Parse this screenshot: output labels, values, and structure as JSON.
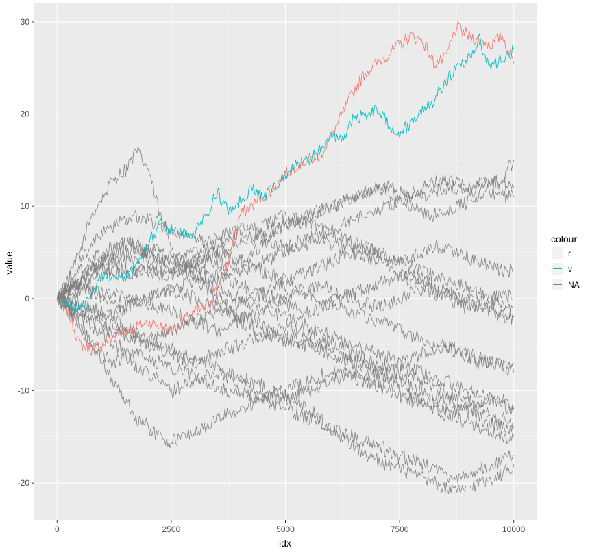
{
  "chart_data": {
    "type": "line",
    "title": "",
    "xlabel": "idx",
    "ylabel": "value",
    "xlim": [
      -500,
      10500
    ],
    "ylim": [
      -24,
      32
    ],
    "x_ticks": [
      0,
      2500,
      5000,
      7500,
      10000
    ],
    "x_tick_labels": [
      "0",
      "2500",
      "5000",
      "7500",
      "10000"
    ],
    "y_ticks": [
      -20,
      -10,
      0,
      10,
      20,
      30
    ],
    "y_tick_labels": [
      "-20",
      "-10",
      "0",
      "10",
      "20",
      "30"
    ],
    "grid": true,
    "legend": {
      "title": "colour",
      "placement": "right",
      "entries": [
        {
          "label": "r",
          "color": "#F8766D"
        },
        {
          "label": "v",
          "color": "#00BFC4"
        },
        {
          "label": "NA",
          "color": "#7F7F7F"
        }
      ]
    },
    "colors": {
      "panel_background": "#EBEBEB",
      "grid_major": "#FFFFFF",
      "grid_minor": "#F5F5F5",
      "other_series": "#7F7F7F"
    },
    "series": [
      {
        "name": "r",
        "color": "#F8766D",
        "x": [
          0,
          250,
          500,
          750,
          1000,
          1250,
          1500,
          1750,
          2000,
          2250,
          2500,
          2750,
          3000,
          3250,
          3500,
          3750,
          4000,
          4250,
          4500,
          4750,
          5000,
          5250,
          5500,
          5750,
          6000,
          6250,
          6500,
          6750,
          7000,
          7250,
          7500,
          7750,
          8000,
          8250,
          8500,
          8750,
          9000,
          9250,
          9500,
          9750,
          10000
        ],
        "values": [
          0,
          -1.5,
          -5,
          -5.5,
          -5,
          -4,
          -3.5,
          -3,
          -2.5,
          -3,
          -3.5,
          -2.5,
          -1.5,
          -1,
          1,
          4,
          9,
          10,
          11,
          12,
          13.5,
          14.5,
          15,
          15.5,
          17.5,
          20,
          22.5,
          24.5,
          25.5,
          26.5,
          27.5,
          28.5,
          28,
          25.5,
          26,
          29.5,
          28.5,
          28,
          27.5,
          28.5,
          25.5
        ]
      },
      {
        "name": "v",
        "color": "#00BFC4",
        "x": [
          0,
          250,
          500,
          750,
          1000,
          1250,
          1500,
          1750,
          2000,
          2250,
          2500,
          2750,
          3000,
          3250,
          3500,
          3750,
          4000,
          4250,
          4500,
          4750,
          5000,
          5250,
          5500,
          5750,
          6000,
          6250,
          6500,
          6750,
          7000,
          7250,
          7500,
          7750,
          8000,
          8250,
          8500,
          8750,
          9000,
          9250,
          9500,
          9750,
          10000
        ],
        "values": [
          0,
          -0.5,
          -1,
          0.5,
          2.5,
          2,
          2.5,
          3.5,
          6,
          8,
          7.5,
          7,
          7,
          9,
          11.5,
          9.5,
          10.5,
          12,
          11,
          12,
          13.5,
          14.5,
          15,
          16,
          17.5,
          17.5,
          19.5,
          20,
          20.5,
          19,
          18,
          19,
          20.5,
          21.5,
          23.5,
          25,
          26,
          28,
          25,
          26,
          27
        ]
      }
    ],
    "other_series_name": "NA",
    "other_series": [
      [
        0,
        2,
        5,
        9,
        11,
        13,
        14,
        16,
        14,
        9,
        6,
        3,
        2,
        1,
        0,
        -1,
        -2,
        -2,
        -3,
        -4,
        -4.5,
        -5,
        -5,
        -5.5,
        -6,
        -6.5,
        -7,
        -7,
        -8,
        -8,
        -8,
        -8.5,
        -9,
        -9.5,
        -10,
        -10.5,
        -11,
        -12,
        -12.5,
        -13,
        -14
      ],
      [
        0,
        1,
        2,
        3,
        4,
        4,
        3,
        3,
        3,
        2.5,
        2.5,
        3,
        3.5,
        4,
        4,
        3.5,
        4,
        5,
        6,
        7,
        8,
        8.5,
        9,
        9.5,
        10,
        10.5,
        11,
        11.5,
        12,
        12,
        11.5,
        11,
        11,
        11.5,
        12,
        12,
        11.5,
        12,
        12.5,
        13,
        15
      ],
      [
        0,
        -1,
        -3,
        -5,
        -6,
        -7,
        -6,
        -7.5,
        -8,
        -9,
        -10,
        -9.5,
        -9,
        -8.5,
        -8,
        -8.5,
        -9,
        -10,
        -10.5,
        -11,
        -11,
        -10.5,
        -10,
        -9.5,
        -9,
        -8.5,
        -8,
        -8.5,
        -9,
        -9,
        -10,
        -10.5,
        -11,
        -11.5,
        -12,
        -12,
        -12,
        -11.5,
        -11,
        -11,
        -12
      ],
      [
        0,
        -1.5,
        -3,
        -5,
        -7,
        -9,
        -11,
        -13,
        -14,
        -15,
        -15.5,
        -15,
        -14.5,
        -14,
        -13,
        -12.5,
        -12,
        -11.5,
        -11,
        -10.5,
        -10,
        -9.5,
        -9,
        -8.5,
        -8,
        -8,
        -8.5,
        -9,
        -9.5,
        -10,
        -10.5,
        -11,
        -11.5,
        -12,
        -12.5,
        -13,
        -13.5,
        -14,
        -14.5,
        -15,
        -15
      ],
      [
        0,
        0.5,
        1,
        1,
        0.5,
        0.5,
        0,
        0,
        -0.5,
        -1,
        -1.5,
        -2,
        -2.5,
        -3,
        -3.5,
        -3,
        -2.5,
        -3,
        -3.5,
        -4,
        -4,
        -4.5,
        -5,
        -5.5,
        -6,
        -6.5,
        -7,
        -7.5,
        -8,
        -8.5,
        -9,
        -9.5,
        -10,
        -10.5,
        -11,
        -11.5,
        -12,
        -13,
        -13.5,
        -14,
        -14
      ],
      [
        0,
        1,
        1.5,
        2,
        2.5,
        3,
        2.5,
        3,
        3.5,
        3,
        3,
        3.5,
        4,
        4.5,
        5,
        4.5,
        4,
        3.5,
        3,
        2.5,
        2,
        2.5,
        3,
        3.5,
        4,
        4.5,
        5,
        5.5,
        5,
        4.5,
        4,
        4.5,
        5,
        5.5,
        5.5,
        5,
        4.5,
        4,
        3.5,
        3,
        3
      ],
      [
        0,
        -0.5,
        -1,
        -2,
        -2.5,
        -3,
        -3.5,
        -4,
        -4.5,
        -4,
        -3.5,
        -3,
        -2.5,
        -2,
        -1.5,
        -1,
        -0.5,
        0,
        0.5,
        1,
        1.5,
        1,
        0.5,
        0,
        -0.5,
        -1,
        -1.5,
        -2,
        -2.5,
        -3,
        -3.5,
        -4,
        -4.5,
        -5,
        -5.5,
        -6,
        -6.5,
        -7,
        -7,
        -7,
        -7
      ],
      [
        0,
        1,
        2,
        3,
        4,
        5,
        6,
        6,
        5.5,
        5,
        4.5,
        4,
        3.5,
        3,
        2.5,
        2,
        1.5,
        1,
        0.5,
        0,
        -0.5,
        -1,
        -1.5,
        -1,
        -0.5,
        0,
        0.5,
        1,
        1.5,
        2,
        2.5,
        2,
        1.5,
        1,
        0.5,
        0,
        -0.5,
        -1,
        -1.5,
        -2,
        -2
      ],
      [
        0,
        2,
        4,
        6,
        7,
        8,
        8.5,
        9,
        8.5,
        8,
        7.5,
        7,
        6.5,
        6,
        6.5,
        7,
        7.5,
        7,
        6.5,
        6,
        5.5,
        6,
        6.5,
        7,
        7.5,
        8,
        8.5,
        9,
        9.5,
        10,
        10.5,
        10,
        9.5,
        9,
        9.5,
        10,
        10.5,
        11,
        11.5,
        11,
        11
      ],
      [
        0,
        0,
        -0.5,
        -1,
        -1.5,
        -2,
        -3,
        -4,
        -4.5,
        -5,
        -5.5,
        -6,
        -6.5,
        -7,
        -7.5,
        -8,
        -8.5,
        -9,
        -9.5,
        -10,
        -10.5,
        -11,
        -12,
        -13,
        -14,
        -15,
        -16,
        -17,
        -17.5,
        -18,
        -18.5,
        -19,
        -19.5,
        -20,
        -20.5,
        -21,
        -20.5,
        -20,
        -19.5,
        -19,
        -18
      ],
      [
        0,
        0.5,
        1,
        0.5,
        0,
        -0.5,
        -1,
        -0.5,
        0,
        0.5,
        1,
        0.5,
        0,
        -0.5,
        -1,
        -1.5,
        -2,
        -1.5,
        -1,
        -0.5,
        0,
        0.5,
        1,
        1.5,
        1,
        0.5,
        0,
        -0.5,
        -1,
        -0.5,
        0,
        0.5,
        1,
        0.5,
        0,
        -0.5,
        -1,
        -0.5,
        0,
        0.5,
        0
      ],
      [
        0,
        1,
        2,
        3.5,
        4,
        4.5,
        5,
        5.5,
        5,
        4.5,
        4,
        3.5,
        3,
        2.5,
        2,
        2.5,
        3,
        3.5,
        4,
        4.5,
        5,
        5.5,
        6,
        6.5,
        6,
        5.5,
        5,
        4.5,
        4,
        3.5,
        3,
        2.5,
        2,
        1.5,
        1,
        0.5,
        0,
        -0.5,
        -1,
        -1.5,
        -2
      ],
      [
        0,
        -1,
        -2,
        -3,
        -4,
        -5,
        -5.5,
        -6,
        -6.5,
        -7,
        -7.5,
        -8,
        -8.5,
        -9,
        -9.5,
        -10,
        -10,
        -10.5,
        -11,
        -11.5,
        -12,
        -12.5,
        -13,
        -13.5,
        -14,
        -14.5,
        -15,
        -15.5,
        -16,
        -16.5,
        -17,
        -17.5,
        -18,
        -18.5,
        -19,
        -19.5,
        -19,
        -18.5,
        -18,
        -17.5,
        -17
      ],
      [
        0,
        0.5,
        1.5,
        2.5,
        3,
        3.5,
        4,
        4.5,
        4,
        3.5,
        3,
        3.5,
        4,
        4.5,
        5,
        5.5,
        6,
        6.5,
        7,
        7.5,
        8,
        8.5,
        9,
        9.5,
        10,
        10.5,
        11,
        11.5,
        12,
        11.5,
        11,
        11.5,
        12,
        12.5,
        13,
        12.5,
        12,
        12.5,
        13,
        12.5,
        12
      ],
      [
        0,
        -0.5,
        -1.5,
        -2.5,
        -3,
        -3.5,
        -4,
        -4.5,
        -5,
        -5.5,
        -6,
        -6.5,
        -7,
        -6.5,
        -6,
        -5.5,
        -5,
        -4.5,
        -4,
        -3.5,
        -3,
        -3.5,
        -4,
        -4.5,
        -5,
        -5.5,
        -6,
        -6.5,
        -7,
        -7.5,
        -7,
        -6.5,
        -6,
        -5.5,
        -5,
        -5.5,
        -6,
        -6.5,
        -7,
        -7.5,
        -8
      ],
      [
        0,
        1.5,
        3,
        4.5,
        5,
        5.5,
        6,
        5.5,
        5,
        4.5,
        4,
        4.5,
        5,
        5.5,
        6,
        6.5,
        7,
        7.5,
        8,
        8.5,
        9,
        8.5,
        8,
        7.5,
        7,
        6.5,
        6,
        5.5,
        5,
        4.5,
        4,
        3.5,
        3,
        2.5,
        2,
        1.5,
        1,
        0.5,
        0,
        -0.5,
        -1
      ],
      [
        0,
        -0.5,
        -1,
        -1.5,
        -2,
        -1.5,
        -1,
        -0.5,
        0,
        0.5,
        1,
        1.5,
        2,
        1.5,
        1,
        0.5,
        0,
        -0.5,
        -1,
        -1.5,
        -2,
        -2.5,
        -3,
        -3.5,
        -4,
        -4.5,
        -5,
        -5.5,
        -6,
        -6.5,
        -7,
        -7.5,
        -8,
        -8.5,
        -9,
        -9.5,
        -10,
        -10.5,
        -11,
        -11.5,
        -12
      ]
    ]
  }
}
